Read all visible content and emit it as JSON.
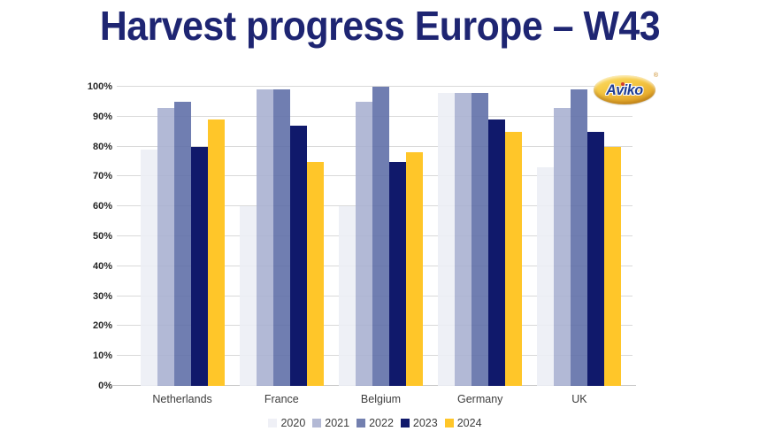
{
  "title": {
    "text": "Harvest progress Europe – W43",
    "color": "#1E2572"
  },
  "logo": {
    "text": "Aviko",
    "registered": "®",
    "bg_gold": "#F5C844",
    "text_color": "#1F3E93",
    "i_dot_color": "#D23B2F"
  },
  "chart_data": {
    "type": "bar",
    "title": "Harvest progress Europe – W43",
    "categories": [
      "Netherlands",
      "France",
      "Belgium",
      "Germany",
      "UK"
    ],
    "series": [
      {
        "name": "2020",
        "swatch": "#EFF0F6",
        "fill": "rgba(236,238,245,0.88)",
        "values": [
          79,
          60,
          60,
          98,
          73
        ]
      },
      {
        "name": "2021",
        "swatch": "#B3B9D5",
        "fill": "rgba(167,175,208,0.88)",
        "values": [
          93,
          99,
          95,
          98,
          93
        ]
      },
      {
        "name": "2022",
        "swatch": "#7380AF",
        "fill": "rgba(92,108,166,0.88)",
        "values": [
          95,
          99,
          100,
          98,
          99
        ]
      },
      {
        "name": "2023",
        "swatch": "#10196B",
        "fill": "rgba(16,25,107,1)",
        "values": [
          80,
          87,
          75,
          89,
          85
        ]
      },
      {
        "name": "2024",
        "swatch": "#FFC629",
        "fill": "rgba(255,198,41,1)",
        "values": [
          89,
          75,
          78,
          85,
          80
        ]
      }
    ],
    "ylim": [
      0,
      100
    ],
    "y_ticks": [
      "0%",
      "10%",
      "20%",
      "30%",
      "40%",
      "50%",
      "60%",
      "70%",
      "80%",
      "90%",
      "100%"
    ],
    "grid": true,
    "gridline_color": "#D9D9D9",
    "legend_position": "bottom"
  }
}
